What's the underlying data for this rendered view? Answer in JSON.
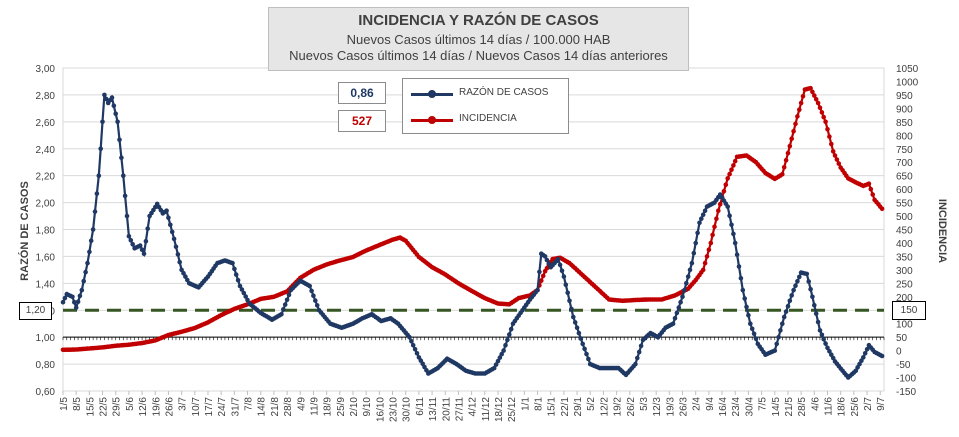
{
  "title": {
    "line1": "INCIDENCIA Y RAZÓN DE CASOS",
    "line2": "Nuevos Casos últimos 14 días / 100.000 HAB",
    "line3": "Nuevos Casos últimos 14 días / Nuevos Casos 14 días anteriores"
  },
  "current": {
    "razon": "0,86",
    "incidencia": "527"
  },
  "legend": {
    "razon": "RAZÓN DE CASOS",
    "incidencia": "INCIDENCIA"
  },
  "colors": {
    "razon": "#1f3864",
    "incidencia": "#c00000",
    "threshold": "#375623"
  },
  "reference": {
    "left": "1,20",
    "right": "150"
  },
  "chart_data": {
    "type": "line",
    "ylabel_left": "RAZÓN DE CASOS",
    "ylabel_right": "INCIDENCIA",
    "ylim_left": [
      0.6,
      3.0
    ],
    "ylim_right": [
      -150,
      1050
    ],
    "yticks_left": [
      "0,60",
      "0,80",
      "1,00",
      "1,20",
      "1,40",
      "1,60",
      "1,80",
      "2,00",
      "2,20",
      "2,40",
      "2,60",
      "2,80",
      "3,00"
    ],
    "yticks_right": [
      "-150",
      "-100",
      "-50",
      "0",
      "50",
      "100",
      "150",
      "200",
      "250",
      "300",
      "350",
      "400",
      "450",
      "500",
      "550",
      "600",
      "650",
      "700",
      "750",
      "800",
      "850",
      "900",
      "950",
      "1000",
      "1050"
    ],
    "x_start": "2020-05-01",
    "x_end": "2021-07-11",
    "xtick_labels": [
      "1/5",
      "8/5",
      "15/5",
      "22/5",
      "29/5",
      "5/6",
      "12/6",
      "19/6",
      "26/6",
      "3/7",
      "10/7",
      "17/7",
      "24/7",
      "31/7",
      "7/8",
      "14/8",
      "21/8",
      "28/8",
      "4/9",
      "11/9",
      "18/9",
      "25/9",
      "2/10",
      "9/10",
      "16/10",
      "23/10",
      "30/10",
      "6/11",
      "13/11",
      "20/11",
      "27/11",
      "4/12",
      "11/12",
      "18/12",
      "25/12",
      "1/1",
      "8/1",
      "15/1",
      "22/1",
      "29/1",
      "5/2",
      "12/2",
      "19/2",
      "26/2",
      "5/3",
      "12/3",
      "19/3",
      "26/3",
      "2/4",
      "9/4",
      "16/4",
      "23/4",
      "30/4",
      "7/5",
      "14/5",
      "21/5",
      "28/5",
      "4/6",
      "11/6",
      "18/6",
      "25/6",
      "2/7",
      "9/7"
    ],
    "threshold_left": 1.2,
    "baseline_left": 1.0,
    "series": [
      {
        "name": "RAZÓN DE CASOS",
        "axis": "left",
        "points": [
          [
            "2020-05-01",
            1.26
          ],
          [
            "2020-05-03",
            1.32
          ],
          [
            "2020-05-06",
            1.3
          ],
          [
            "2020-05-08",
            1.22
          ],
          [
            "2020-05-11",
            1.35
          ],
          [
            "2020-05-14",
            1.55
          ],
          [
            "2020-05-17",
            1.8
          ],
          [
            "2020-05-20",
            2.2
          ],
          [
            "2020-05-23",
            2.8
          ],
          [
            "2020-05-25",
            2.74
          ],
          [
            "2020-05-27",
            2.78
          ],
          [
            "2020-05-30",
            2.6
          ],
          [
            "2020-06-02",
            2.2
          ],
          [
            "2020-06-05",
            1.75
          ],
          [
            "2020-06-08",
            1.66
          ],
          [
            "2020-06-11",
            1.68
          ],
          [
            "2020-06-13",
            1.62
          ],
          [
            "2020-06-16",
            1.9
          ],
          [
            "2020-06-20",
            1.99
          ],
          [
            "2020-06-23",
            1.92
          ],
          [
            "2020-06-25",
            1.94
          ],
          [
            "2020-06-29",
            1.73
          ],
          [
            "2020-07-03",
            1.5
          ],
          [
            "2020-07-07",
            1.4
          ],
          [
            "2020-07-12",
            1.37
          ],
          [
            "2020-07-17",
            1.45
          ],
          [
            "2020-07-22",
            1.55
          ],
          [
            "2020-07-26",
            1.57
          ],
          [
            "2020-07-30",
            1.55
          ],
          [
            "2020-08-03",
            1.38
          ],
          [
            "2020-08-08",
            1.25
          ],
          [
            "2020-08-14",
            1.18
          ],
          [
            "2020-08-20",
            1.13
          ],
          [
            "2020-08-25",
            1.17
          ],
          [
            "2020-08-30",
            1.35
          ],
          [
            "2020-09-04",
            1.42
          ],
          [
            "2020-09-09",
            1.38
          ],
          [
            "2020-09-14",
            1.2
          ],
          [
            "2020-09-20",
            1.1
          ],
          [
            "2020-09-26",
            1.07
          ],
          [
            "2020-10-02",
            1.1
          ],
          [
            "2020-10-07",
            1.14
          ],
          [
            "2020-10-12",
            1.17
          ],
          [
            "2020-10-17",
            1.12
          ],
          [
            "2020-10-22",
            1.14
          ],
          [
            "2020-10-26",
            1.1
          ],
          [
            "2020-11-01",
            1.0
          ],
          [
            "2020-11-06",
            0.85
          ],
          [
            "2020-11-11",
            0.73
          ],
          [
            "2020-11-16",
            0.77
          ],
          [
            "2020-11-21",
            0.84
          ],
          [
            "2020-11-26",
            0.8
          ],
          [
            "2020-12-01",
            0.75
          ],
          [
            "2020-12-06",
            0.73
          ],
          [
            "2020-12-11",
            0.73
          ],
          [
            "2020-12-16",
            0.77
          ],
          [
            "2020-12-21",
            0.9
          ],
          [
            "2020-12-26",
            1.1
          ],
          [
            "2020-12-31",
            1.2
          ],
          [
            "2021-01-04",
            1.28
          ],
          [
            "2021-01-08",
            1.35
          ],
          [
            "2021-01-10",
            1.62
          ],
          [
            "2021-01-12",
            1.6
          ],
          [
            "2021-01-15",
            1.52
          ],
          [
            "2021-01-19",
            1.58
          ],
          [
            "2021-01-22",
            1.45
          ],
          [
            "2021-01-27",
            1.15
          ],
          [
            "2021-02-01",
            0.95
          ],
          [
            "2021-02-05",
            0.8
          ],
          [
            "2021-02-10",
            0.77
          ],
          [
            "2021-02-15",
            0.77
          ],
          [
            "2021-02-20",
            0.77
          ],
          [
            "2021-02-24",
            0.72
          ],
          [
            "2021-03-01",
            0.8
          ],
          [
            "2021-03-05",
            0.98
          ],
          [
            "2021-03-09",
            1.03
          ],
          [
            "2021-03-13",
            1.0
          ],
          [
            "2021-03-17",
            1.07
          ],
          [
            "2021-03-21",
            1.1
          ],
          [
            "2021-03-26",
            1.3
          ],
          [
            "2021-03-31",
            1.55
          ],
          [
            "2021-04-04",
            1.85
          ],
          [
            "2021-04-08",
            1.97
          ],
          [
            "2021-04-12",
            2.0
          ],
          [
            "2021-04-15",
            2.06
          ],
          [
            "2021-04-19",
            1.97
          ],
          [
            "2021-04-23",
            1.7
          ],
          [
            "2021-04-27",
            1.35
          ],
          [
            "2021-05-01",
            1.1
          ],
          [
            "2021-05-05",
            0.95
          ],
          [
            "2021-05-09",
            0.87
          ],
          [
            "2021-05-14",
            0.9
          ],
          [
            "2021-05-19",
            1.15
          ],
          [
            "2021-05-24",
            1.35
          ],
          [
            "2021-05-28",
            1.48
          ],
          [
            "2021-05-31",
            1.47
          ],
          [
            "2021-06-03",
            1.3
          ],
          [
            "2021-06-07",
            1.05
          ],
          [
            "2021-06-11",
            0.92
          ],
          [
            "2021-06-15",
            0.82
          ],
          [
            "2021-06-19",
            0.75
          ],
          [
            "2021-06-22",
            0.7
          ],
          [
            "2021-06-26",
            0.75
          ],
          [
            "2021-06-30",
            0.85
          ],
          [
            "2021-07-03",
            0.94
          ],
          [
            "2021-07-06",
            0.89
          ],
          [
            "2021-07-10",
            0.86
          ]
        ]
      },
      {
        "name": "INCIDENCIA",
        "axis": "right",
        "points": [
          [
            "2020-05-01",
            3
          ],
          [
            "2020-05-08",
            4
          ],
          [
            "2020-05-15",
            8
          ],
          [
            "2020-05-22",
            12
          ],
          [
            "2020-05-29",
            18
          ],
          [
            "2020-06-05",
            22
          ],
          [
            "2020-06-12",
            28
          ],
          [
            "2020-06-19",
            38
          ],
          [
            "2020-06-26",
            58
          ],
          [
            "2020-07-03",
            70
          ],
          [
            "2020-07-10",
            84
          ],
          [
            "2020-07-17",
            105
          ],
          [
            "2020-07-24",
            132
          ],
          [
            "2020-07-31",
            155
          ],
          [
            "2020-08-07",
            172
          ],
          [
            "2020-08-14",
            192
          ],
          [
            "2020-08-21",
            200
          ],
          [
            "2020-08-28",
            220
          ],
          [
            "2020-09-04",
            270
          ],
          [
            "2020-09-11",
            300
          ],
          [
            "2020-09-18",
            320
          ],
          [
            "2020-09-25",
            335
          ],
          [
            "2020-10-02",
            348
          ],
          [
            "2020-10-09",
            372
          ],
          [
            "2020-10-16",
            392
          ],
          [
            "2020-10-23",
            412
          ],
          [
            "2020-10-27",
            420
          ],
          [
            "2020-10-30",
            408
          ],
          [
            "2020-11-06",
            348
          ],
          [
            "2020-11-13",
            310
          ],
          [
            "2020-11-20",
            283
          ],
          [
            "2020-11-27",
            250
          ],
          [
            "2020-12-04",
            222
          ],
          [
            "2020-12-11",
            195
          ],
          [
            "2020-12-18",
            175
          ],
          [
            "2020-12-24",
            172
          ],
          [
            "2020-12-29",
            195
          ],
          [
            "2021-01-04",
            205
          ],
          [
            "2021-01-08",
            225
          ],
          [
            "2021-01-12",
            295
          ],
          [
            "2021-01-16",
            340
          ],
          [
            "2021-01-20",
            345
          ],
          [
            "2021-01-25",
            325
          ],
          [
            "2021-02-01",
            280
          ],
          [
            "2021-02-08",
            235
          ],
          [
            "2021-02-15",
            190
          ],
          [
            "2021-02-22",
            185
          ],
          [
            "2021-03-01",
            188
          ],
          [
            "2021-03-08",
            190
          ],
          [
            "2021-03-15",
            190
          ],
          [
            "2021-03-22",
            205
          ],
          [
            "2021-03-29",
            230
          ],
          [
            "2021-04-02",
            262
          ],
          [
            "2021-04-06",
            300
          ],
          [
            "2021-04-10",
            400
          ],
          [
            "2021-04-14",
            520
          ],
          [
            "2021-04-19",
            640
          ],
          [
            "2021-04-24",
            720
          ],
          [
            "2021-04-29",
            725
          ],
          [
            "2021-05-04",
            700
          ],
          [
            "2021-05-09",
            660
          ],
          [
            "2021-05-14",
            638
          ],
          [
            "2021-05-18",
            655
          ],
          [
            "2021-05-22",
            760
          ],
          [
            "2021-05-26",
            870
          ],
          [
            "2021-05-30",
            970
          ],
          [
            "2021-06-02",
            975
          ],
          [
            "2021-06-06",
            920
          ],
          [
            "2021-06-10",
            850
          ],
          [
            "2021-06-14",
            740
          ],
          [
            "2021-06-18",
            680
          ],
          [
            "2021-06-22",
            640
          ],
          [
            "2021-06-26",
            625
          ],
          [
            "2021-06-30",
            612
          ],
          [
            "2021-07-03",
            620
          ],
          [
            "2021-07-06",
            560
          ],
          [
            "2021-07-10",
            527
          ]
        ]
      }
    ]
  }
}
